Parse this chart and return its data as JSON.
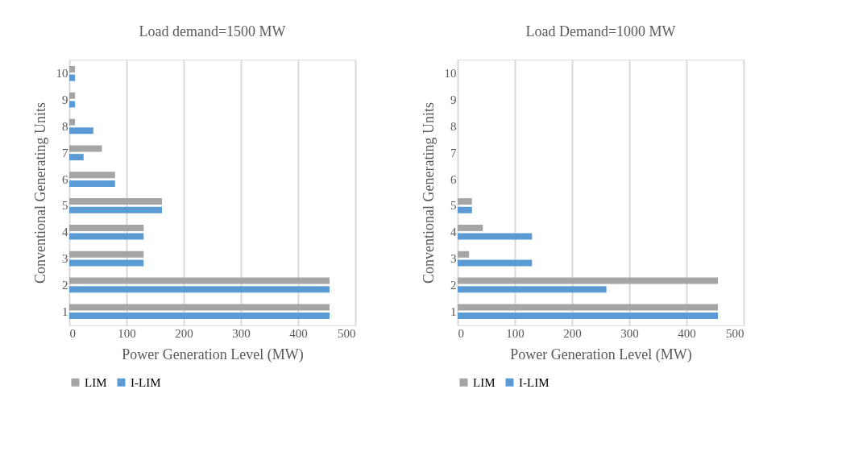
{
  "chart_data": [
    {
      "type": "bar",
      "orientation": "horizontal",
      "title": "Load demand=1500 MW",
      "xlabel": "Power Generation Level (MW)",
      "ylabel": "Conventional Generating Units",
      "categories": [
        "10",
        "9",
        "8",
        "7",
        "6",
        "5",
        "4",
        "3",
        "2",
        "1"
      ],
      "series": [
        {
          "name": "LIM",
          "color": "#a5a5a5",
          "values": [
            10,
            10,
            10,
            57,
            80,
            162,
            130,
            130,
            455,
            455
          ]
        },
        {
          "name": "I-LIM",
          "color": "#5b9bd5",
          "values": [
            10,
            10,
            42,
            25,
            80,
            162,
            130,
            130,
            455,
            455
          ]
        }
      ],
      "xlim": [
        0,
        500
      ],
      "xticks": [
        0,
        100,
        200,
        300,
        400,
        500
      ],
      "grid": "x",
      "legend": "bottom"
    },
    {
      "type": "bar",
      "orientation": "horizontal",
      "title": "Load Demand=1000 MW",
      "xlabel": "Power Generation Level (MW)",
      "ylabel": "Conventional Generating Units",
      "categories": [
        "10",
        "9",
        "8",
        "7",
        "6",
        "5",
        "4",
        "3",
        "2",
        "1"
      ],
      "series": [
        {
          "name": "LIM",
          "color": "#a5a5a5",
          "values": [
            null,
            null,
            null,
            null,
            null,
            25,
            44,
            20,
            455,
            455
          ]
        },
        {
          "name": "I-LIM",
          "color": "#5b9bd5",
          "values": [
            null,
            null,
            null,
            null,
            null,
            25,
            130,
            130,
            260,
            455
          ]
        }
      ],
      "xlim": [
        0,
        500
      ],
      "xticks": [
        0,
        100,
        200,
        300,
        400,
        500
      ],
      "grid": "x",
      "legend": "bottom"
    }
  ]
}
